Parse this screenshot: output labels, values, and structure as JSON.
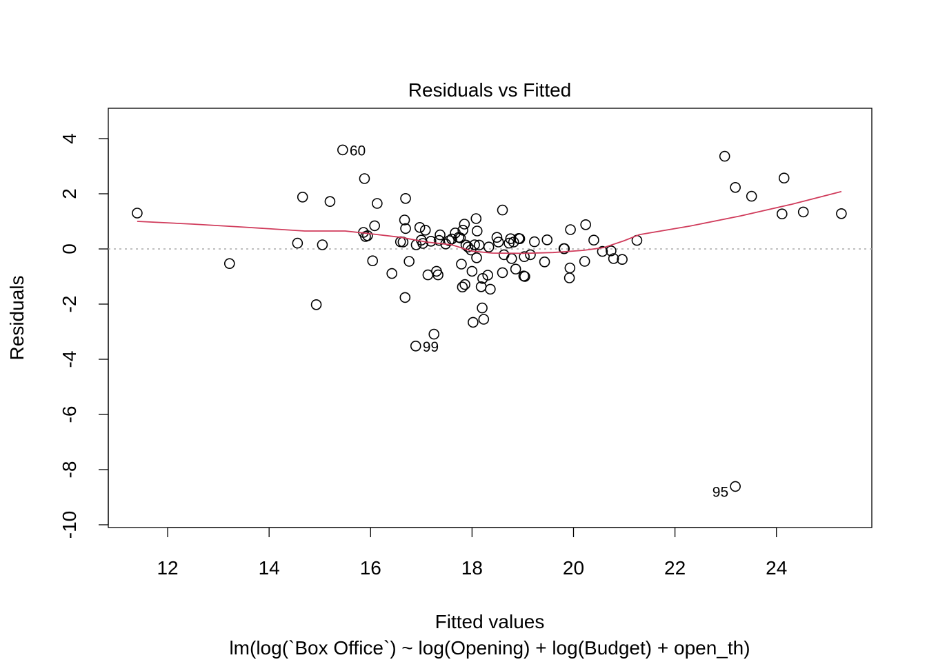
{
  "chart_data": {
    "type": "scatter",
    "title": "Residuals vs Fitted",
    "xlabel": "Fitted values",
    "subtitle": "lm(log(`Box Office`) ~ log(Opening) + log(Budget) + open_th)",
    "ylabel": "Residuals",
    "xlim": [
      10.83,
      25.88
    ],
    "ylim": [
      -10.1,
      5.1
    ],
    "x_ticks": [
      12,
      14,
      16,
      18,
      20,
      22,
      24
    ],
    "y_ticks": [
      -10,
      -8,
      -6,
      -4,
      -2,
      0,
      2,
      4
    ],
    "reference_line": {
      "y": 0,
      "style": "dotted",
      "color": "#aaaaaa"
    },
    "smooth_color": "#d03b5b",
    "point_color": "#000000",
    "points": [
      [
        11.4,
        1.3
      ],
      [
        13.22,
        -0.53
      ],
      [
        14.56,
        0.21
      ],
      [
        14.66,
        1.88
      ],
      [
        14.93,
        -2.02
      ],
      [
        15.05,
        0.15
      ],
      [
        15.2,
        1.72
      ],
      [
        15.45,
        3.59
      ],
      [
        15.86,
        0.6
      ],
      [
        15.88,
        2.55
      ],
      [
        15.9,
        0.45
      ],
      [
        15.94,
        0.48
      ],
      [
        16.04,
        -0.43
      ],
      [
        16.08,
        0.84
      ],
      [
        16.13,
        1.65
      ],
      [
        16.42,
        -0.89
      ],
      [
        16.59,
        0.26
      ],
      [
        16.64,
        0.25
      ],
      [
        16.67,
        1.05
      ],
      [
        16.68,
        -1.76
      ],
      [
        16.69,
        0.74
      ],
      [
        16.69,
        1.83
      ],
      [
        16.76,
        -0.45
      ],
      [
        16.89,
        -3.52
      ],
      [
        16.9,
        0.15
      ],
      [
        16.97,
        0.78
      ],
      [
        17.0,
        0.32
      ],
      [
        17.03,
        0.2
      ],
      [
        17.08,
        0.68
      ],
      [
        17.13,
        -0.94
      ],
      [
        17.19,
        0.28
      ],
      [
        17.25,
        -3.09
      ],
      [
        17.3,
        -0.81
      ],
      [
        17.33,
        -0.94
      ],
      [
        17.35,
        0.31
      ],
      [
        17.37,
        0.51
      ],
      [
        17.48,
        0.18
      ],
      [
        17.55,
        0.3
      ],
      [
        17.6,
        0.36
      ],
      [
        17.67,
        0.58
      ],
      [
        17.74,
        0.42
      ],
      [
        17.77,
        0.4
      ],
      [
        17.79,
        -0.55
      ],
      [
        17.81,
        -1.38
      ],
      [
        17.82,
        0.68
      ],
      [
        17.85,
        0.9
      ],
      [
        17.86,
        -1.29
      ],
      [
        17.88,
        0.14
      ],
      [
        17.92,
        0.07
      ],
      [
        17.98,
        -0.04
      ],
      [
        18.0,
        -0.81
      ],
      [
        18.02,
        -2.66
      ],
      [
        18.05,
        0.15
      ],
      [
        18.08,
        1.1
      ],
      [
        18.09,
        -0.32
      ],
      [
        18.1,
        0.65
      ],
      [
        18.14,
        0.14
      ],
      [
        18.18,
        -1.37
      ],
      [
        18.2,
        -2.14
      ],
      [
        18.21,
        -1.07
      ],
      [
        18.23,
        -2.55
      ],
      [
        18.31,
        -0.95
      ],
      [
        18.33,
        0.07
      ],
      [
        18.36,
        -1.46
      ],
      [
        18.49,
        0.42
      ],
      [
        18.52,
        0.25
      ],
      [
        18.6,
        -0.86
      ],
      [
        18.6,
        1.41
      ],
      [
        18.63,
        -0.21
      ],
      [
        18.73,
        0.21
      ],
      [
        18.76,
        0.37
      ],
      [
        18.78,
        -0.35
      ],
      [
        18.82,
        0.25
      ],
      [
        18.86,
        -0.73
      ],
      [
        18.92,
        0.38
      ],
      [
        18.94,
        0.37
      ],
      [
        19.02,
        -0.98
      ],
      [
        19.03,
        -0.28
      ],
      [
        19.04,
        -1.0
      ],
      [
        19.15,
        -0.21
      ],
      [
        19.23,
        0.26
      ],
      [
        19.43,
        -0.47
      ],
      [
        19.48,
        0.33
      ],
      [
        19.81,
        0.01
      ],
      [
        19.82,
        0.01
      ],
      [
        19.92,
        -1.05
      ],
      [
        19.93,
        -0.69
      ],
      [
        19.94,
        0.7
      ],
      [
        20.22,
        -0.45
      ],
      [
        20.24,
        0.88
      ],
      [
        20.4,
        0.32
      ],
      [
        20.57,
        -0.09
      ],
      [
        20.74,
        -0.07
      ],
      [
        20.79,
        -0.35
      ],
      [
        20.96,
        -0.38
      ],
      [
        21.25,
        0.31
      ],
      [
        22.98,
        3.36
      ],
      [
        23.19,
        -8.61
      ],
      [
        23.19,
        2.23
      ],
      [
        23.51,
        1.91
      ],
      [
        24.11,
        1.27
      ],
      [
        24.15,
        2.57
      ],
      [
        24.53,
        1.34
      ],
      [
        25.28,
        1.28
      ]
    ],
    "labeled_points": [
      {
        "label": "60",
        "x": 15.45,
        "y": 3.59,
        "side": "right"
      },
      {
        "label": "99",
        "x": 16.89,
        "y": -3.52,
        "side": "right"
      },
      {
        "label": "95",
        "x": 23.19,
        "y": -8.61,
        "side": "left"
      }
    ],
    "smooth_line": [
      [
        11.4,
        1.0
      ],
      [
        12.5,
        0.9
      ],
      [
        13.5,
        0.79
      ],
      [
        14.7,
        0.65
      ],
      [
        15.5,
        0.65
      ],
      [
        16.0,
        0.55
      ],
      [
        16.6,
        0.42
      ],
      [
        17.1,
        0.25
      ],
      [
        17.6,
        0.15
      ],
      [
        18.0,
        -0.08
      ],
      [
        18.4,
        -0.15
      ],
      [
        19.0,
        -0.16
      ],
      [
        19.6,
        -0.13
      ],
      [
        20.2,
        -0.05
      ],
      [
        20.6,
        0.05
      ],
      [
        21.0,
        0.3
      ],
      [
        21.3,
        0.52
      ],
      [
        22.3,
        0.83
      ],
      [
        23.3,
        1.2
      ],
      [
        24.3,
        1.62
      ],
      [
        25.28,
        2.08
      ]
    ]
  }
}
